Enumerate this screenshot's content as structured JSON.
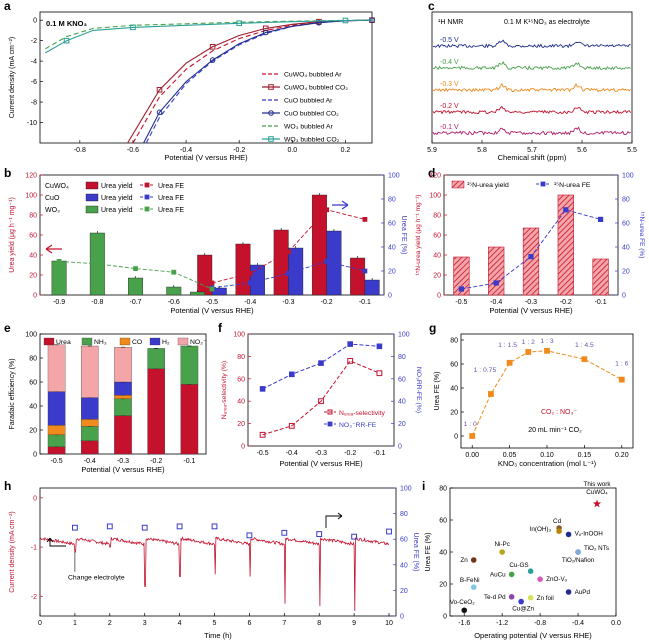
{
  "panel_letters": {
    "a": "a",
    "b": "b",
    "c": "c",
    "d": "d",
    "e": "e",
    "f": "f",
    "g": "g",
    "h": "h",
    "i": "i"
  },
  "colors": {
    "red": "#c4122d",
    "darkred": "#9e1f2d",
    "blue": "#3a3acb",
    "green": "#49a14b",
    "teal": "#2aa198",
    "orange": "#f08a1d",
    "pink": "#f4a5a8",
    "navy": "#1f2d8c",
    "magenta": "#b0206b"
  },
  "chart_data": [
    {
      "id": "a",
      "type": "line",
      "title": "",
      "xlabel": "Potential (V versus RHE)",
      "ylabel": "Current density (mA cm⁻²)",
      "annotation": "0.1 M KNO₃",
      "xlim": [
        -0.95,
        0.3
      ],
      "ylim": [
        -12,
        0.8
      ],
      "xticks": [
        -0.8,
        -0.6,
        -0.4,
        -0.2,
        0.0,
        0.2
      ],
      "xtick_labels": [
        "-0.8",
        "-0.6",
        "-0.4",
        "-0.2",
        "0.0",
        "0.2"
      ],
      "yticks": [
        0,
        -2,
        -4,
        -6,
        -8,
        -10
      ],
      "ytick_labels": [
        "0",
        "-2",
        "-4",
        "-6",
        "-8",
        "-10"
      ],
      "series": [
        {
          "name": "CuWO₄ bubbled Ar",
          "color": "#c4122d",
          "dash": "5,3",
          "marker": "none",
          "x": [
            -0.6,
            -0.5,
            -0.4,
            -0.3,
            -0.2,
            -0.1,
            0.0,
            0.1,
            0.2,
            0.3
          ],
          "y": [
            -12,
            -7.5,
            -4.8,
            -3.0,
            -1.8,
            -1.0,
            -0.5,
            -0.2,
            -0.05,
            0
          ]
        },
        {
          "name": "CuWO₄ bubbled CO₂",
          "color": "#9e1f2d",
          "dash": "",
          "marker": "square",
          "x": [
            -0.62,
            -0.5,
            -0.4,
            -0.3,
            -0.2,
            -0.1,
            0.0,
            0.1,
            0.2,
            0.3
          ],
          "y": [
            -12,
            -6.8,
            -4.2,
            -2.6,
            -1.5,
            -0.8,
            -0.4,
            -0.15,
            -0.05,
            0
          ]
        },
        {
          "name": "CuO bubbled Ar",
          "color": "#3a3acb",
          "dash": "5,3",
          "marker": "none",
          "x": [
            -0.55,
            -0.5,
            -0.4,
            -0.3,
            -0.2,
            -0.1,
            0.0,
            0.1,
            0.2,
            0.3
          ],
          "y": [
            -12,
            -9.5,
            -6.2,
            -4.0,
            -2.4,
            -1.3,
            -0.6,
            -0.25,
            -0.05,
            0
          ]
        },
        {
          "name": "CuO bubbled CO₂",
          "color": "#1f2d8c",
          "dash": "",
          "marker": "circle",
          "x": [
            -0.56,
            -0.5,
            -0.4,
            -0.3,
            -0.2,
            -0.1,
            0.0,
            0.1,
            0.2,
            0.3
          ],
          "y": [
            -12,
            -9.0,
            -6.0,
            -3.9,
            -2.3,
            -1.2,
            -0.6,
            -0.25,
            -0.05,
            0
          ]
        },
        {
          "name": "WO₃ bubbled Ar",
          "color": "#49a14b",
          "dash": "5,3",
          "marker": "none",
          "x": [
            -0.93,
            -0.85,
            -0.75,
            -0.6,
            -0.4,
            -0.2,
            0.0,
            0.2,
            0.3
          ],
          "y": [
            -2.8,
            -1.6,
            -0.8,
            -0.5,
            -0.35,
            -0.2,
            -0.1,
            -0.02,
            0
          ]
        },
        {
          "name": "WO₃ bubbled CO₂",
          "color": "#2aa198",
          "dash": "",
          "marker": "square",
          "x": [
            -0.93,
            -0.85,
            -0.75,
            -0.6,
            -0.4,
            -0.2,
            0.0,
            0.2,
            0.3
          ],
          "y": [
            -3.2,
            -2.0,
            -1.0,
            -0.7,
            -0.5,
            -0.3,
            -0.15,
            -0.03,
            0
          ]
        }
      ]
    },
    {
      "id": "b",
      "type": "bar",
      "xlabel": "Potential (V versus RHE)",
      "ylabel": "Urea yield (μg h⁻¹ mg⁻¹)",
      "y2label": "Urea FE (%)",
      "categories": [
        "-0.9",
        "-0.8",
        "-0.7",
        "-0.6",
        "-0.5",
        "-0.4",
        "-0.3",
        "-0.2",
        "-0.1"
      ],
      "ylim": [
        0,
        120
      ],
      "yticks": [
        0,
        20,
        40,
        60,
        80,
        100,
        120
      ],
      "y2lim": [
        0,
        100
      ],
      "y2ticks": [
        0,
        20,
        40,
        60,
        80,
        100
      ],
      "legend_rows": [
        [
          "CuWO₄",
          "Urea yield",
          "Urea FE"
        ],
        [
          "CuO",
          "Urea yield",
          "Urea FE"
        ],
        [
          "WO₃",
          "Urea yield",
          "Urea FE"
        ]
      ],
      "series": [
        {
          "name": "CuWO₄ Urea yield",
          "color": "#c4122d",
          "values": [
            null,
            null,
            null,
            null,
            40,
            51,
            65,
            100,
            37
          ]
        },
        {
          "name": "CuO Urea yield",
          "color": "#3a3acb",
          "values": [
            null,
            null,
            null,
            null,
            7,
            30,
            47,
            64,
            15
          ]
        },
        {
          "name": "WO₃ Urea yield",
          "color": "#49a14b",
          "values": [
            34,
            62,
            17,
            8,
            3,
            null,
            null,
            null,
            null
          ]
        }
      ],
      "fe_series": [
        {
          "name": "CuWO₄ Urea FE",
          "color": "#c4122d",
          "values": [
            null,
            null,
            null,
            null,
            10,
            18,
            36,
            71,
            63
          ]
        },
        {
          "name": "CuO Urea FE",
          "color": "#3a3acb",
          "values": [
            null,
            null,
            null,
            null,
            6,
            10,
            18,
            28,
            20
          ]
        },
        {
          "name": "WO₃ Urea FE",
          "color": "#49a14b",
          "values": [
            28,
            26,
            22,
            19,
            5,
            null,
            null,
            null,
            null
          ]
        }
      ]
    },
    {
      "id": "c",
      "type": "line",
      "title": "¹H NMR",
      "annotation": "0.1 M K¹⁵NO₃ as electrolyte",
      "xlabel": "Chemical shift (ppm)",
      "xlim": [
        5.9,
        5.5
      ],
      "xticks": [
        5.9,
        5.8,
        5.7,
        5.6,
        5.5
      ],
      "xtick_labels": [
        "5.9",
        "5.8",
        "5.7",
        "5.6",
        "5.5"
      ],
      "series": [
        {
          "name": "-0.5 V",
          "color": "#1f2d8c"
        },
        {
          "name": "-0.4 V",
          "color": "#49a14b"
        },
        {
          "name": "-0.3 V",
          "color": "#f08a1d"
        },
        {
          "name": "-0.2 V",
          "color": "#c4122d"
        },
        {
          "name": "-0.1 V",
          "color": "#b0206b"
        }
      ],
      "peaks": [
        5.76,
        5.61
      ]
    },
    {
      "id": "d",
      "type": "bar",
      "xlabel": "Potential (V versus RHE)",
      "ylabel": "¹⁵N-urea yield (μg h⁻¹ mg⁻¹)",
      "y2label": "¹⁵N-urea FE (%)",
      "categories": [
        "-0.5",
        "-0.4",
        "-0.3",
        "-0.2",
        "-0.1"
      ],
      "ylim": [
        0,
        120
      ],
      "yticks": [
        0,
        20,
        40,
        60,
        80,
        100,
        120
      ],
      "y2lim": [
        0,
        100
      ],
      "y2ticks": [
        0,
        20,
        40,
        60,
        80,
        100
      ],
      "legend": [
        "¹⁵N-urea yield",
        "¹⁵N-urea FE"
      ],
      "values": [
        38,
        48,
        67,
        100,
        36
      ],
      "fe_values": [
        5,
        10,
        32,
        71,
        63
      ]
    },
    {
      "id": "e",
      "type": "bar",
      "xlabel": "Potential (V versus RHE)",
      "ylabel": "Faradaic efficiency (%)",
      "categories": [
        "-0.5",
        "-0.4",
        "-0.3",
        "-0.2",
        "-0.1"
      ],
      "ylim": [
        0,
        100
      ],
      "yticks": [
        0,
        20,
        40,
        60,
        80,
        100
      ],
      "legend": [
        "Urea",
        "NH₃",
        "CO",
        "H₂",
        "NO₂⁻"
      ],
      "series": [
        {
          "name": "Urea",
          "color": "#c4122d",
          "values": [
            6,
            11,
            32,
            71,
            58
          ]
        },
        {
          "name": "NH₃",
          "color": "#49a14b",
          "values": [
            10,
            12,
            14,
            17,
            32
          ]
        },
        {
          "name": "CO",
          "color": "#f08a1d",
          "values": [
            8,
            6,
            3,
            0,
            0
          ]
        },
        {
          "name": "H₂",
          "color": "#3a3acb",
          "values": [
            28,
            18,
            11,
            0,
            0
          ]
        },
        {
          "name": "NO₂⁻",
          "color": "#f4a5a8",
          "values": [
            39,
            43,
            29,
            0,
            0
          ]
        }
      ]
    },
    {
      "id": "f",
      "type": "line",
      "xlabel": "Potential (V versus RHE)",
      "ylabel": "Nᵤᵣₑₐ-selectivity (%)",
      "y2label": "NO₃RR-FE (%)",
      "categories": [
        "-0.5",
        "-0.4",
        "-0.3",
        "-0.2",
        "-0.1"
      ],
      "ylim": [
        0,
        100
      ],
      "yticks": [
        0,
        20,
        40,
        60,
        80,
        100
      ],
      "y2lim": [
        0,
        100
      ],
      "y2ticks": [
        0,
        20,
        40,
        60,
        80,
        100
      ],
      "series": [
        {
          "name": "Nᵤᵣₑₐ-selectivity",
          "color": "#c4122d",
          "values": [
            10,
            18,
            40,
            76,
            65
          ]
        },
        {
          "name": "NO₃⁻RR-FE",
          "color": "#3a3acb",
          "values": [
            51,
            64,
            74,
            91,
            89
          ]
        }
      ],
      "legend": [
        "Nᵤᵣₑₐ-selectivity",
        "NO₃⁻RR-FE"
      ]
    },
    {
      "id": "g",
      "type": "line",
      "xlabel": "KNO₃ concentration (mol L⁻¹)",
      "ylabel": "Urea FE (%)",
      "x": [
        0.0,
        0.025,
        0.05,
        0.075,
        0.1,
        0.15,
        0.2
      ],
      "y": [
        0,
        35,
        61,
        70,
        71,
        64,
        47
      ],
      "xlim": [
        -0.015,
        0.215
      ],
      "xticks": [
        0.0,
        0.05,
        0.1,
        0.15,
        0.2
      ],
      "xtick_labels": [
        "0.00",
        "0.05",
        "0.10",
        "0.15",
        "0.20"
      ],
      "ylim": [
        -10,
        85
      ],
      "yticks": [
        0,
        20,
        40,
        60,
        80
      ],
      "ratios": [
        "1 : 0",
        "1 : 0.75",
        "1 : 1.5",
        "1 : 2",
        "1 : 3",
        "1 : 4.5",
        "1 : 6"
      ],
      "annotations": [
        "CO₂ : NO₃⁻",
        "20 mL min⁻¹ CO₂"
      ]
    },
    {
      "id": "h",
      "type": "line",
      "xlabel": "Time (h)",
      "ylabel": "Current density (mA cm⁻²)",
      "y2label": "Urea FE (%)",
      "xlim": [
        0,
        10.2
      ],
      "xticks": [
        0,
        1,
        2,
        3,
        4,
        5,
        6,
        7,
        8,
        9,
        10
      ],
      "ylim": [
        -2.4,
        0.2
      ],
      "yticks": [
        0,
        -1,
        -2
      ],
      "y2lim": [
        0,
        100
      ],
      "y2ticks": [
        0,
        20,
        40,
        60,
        80,
        100
      ],
      "fe_x": [
        1,
        2,
        3,
        4,
        5,
        6,
        7,
        8,
        9,
        10
      ],
      "fe_y": [
        69,
        70,
        69,
        70,
        70,
        63,
        65,
        64,
        62,
        66
      ],
      "annotation": "Change electrolyte"
    },
    {
      "id": "i",
      "type": "scatter",
      "xlabel": "Operating potential (V versus RHE)",
      "ylabel": "Urea FE (%)",
      "xlim": [
        -1.75,
        0.0
      ],
      "xticks": [
        -1.6,
        -1.2,
        -0.8,
        -0.4,
        0.0
      ],
      "xtick_labels": [
        "-1.6",
        "-1.2",
        "-0.8",
        "-0.4",
        "0.0"
      ],
      "ylim": [
        0,
        80
      ],
      "yticks": [
        0,
        20,
        40,
        60,
        80
      ],
      "points": [
        {
          "label": "This work CuWO₄",
          "x": -0.2,
          "y": 70.1,
          "color": "#c4122d",
          "marker": "star"
        },
        {
          "label": "Cd",
          "x": -0.6,
          "y": 55,
          "color": "#8b5a2b"
        },
        {
          "label": "In(OH)₃",
          "x": -0.6,
          "y": 53,
          "color": "#b8860b"
        },
        {
          "label": "Vₒ-InOOH",
          "x": -0.5,
          "y": 51,
          "color": "#1f2d8c"
        },
        {
          "label": "TiO₂ NTs",
          "x": -0.4,
          "y": 40,
          "color": "#2aa198"
        },
        {
          "label": "Ni-Pc",
          "x": -1.2,
          "y": 40,
          "color": "#b8a41a"
        },
        {
          "label": "Zn",
          "x": -1.5,
          "y": 35,
          "color": "#6b3a1a"
        },
        {
          "label": "Cu-GS",
          "x": -0.9,
          "y": 28,
          "color": "#2aa198"
        },
        {
          "label": "TiO₂/Nafion",
          "x": -0.4,
          "y": 40,
          "color": "#7fa8d6"
        },
        {
          "label": "AuCu",
          "x": -1.1,
          "y": 26,
          "color": "#49a14b"
        },
        {
          "label": "ZnO-Vₒ",
          "x": -0.8,
          "y": 23,
          "color": "#d65ab8"
        },
        {
          "label": "B-FeNi",
          "x": -1.5,
          "y": 18,
          "color": "#7ec8e3"
        },
        {
          "label": "Te-d Pd",
          "x": -1.1,
          "y": 12,
          "color": "#8e44ad"
        },
        {
          "label": "Zn foil",
          "x": -0.9,
          "y": 11.4,
          "color": "#d6e05a"
        },
        {
          "label": "Cu@Zn",
          "x": -1.0,
          "y": 9,
          "color": "#3a3acb"
        },
        {
          "label": "Vo-CeO₂",
          "x": -1.6,
          "y": 3.6,
          "color": "#111111"
        },
        {
          "label": "AuPd",
          "x": -0.5,
          "y": 15,
          "color": "#1f2d8c"
        }
      ]
    }
  ]
}
